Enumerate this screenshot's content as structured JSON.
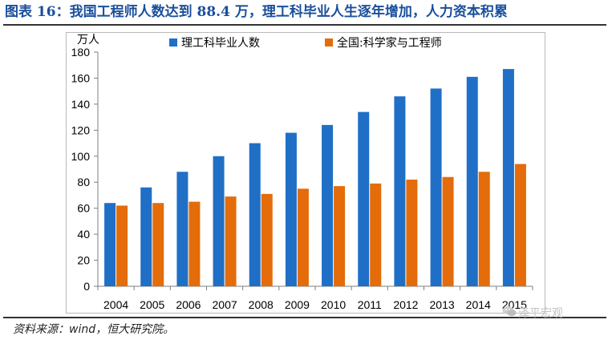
{
  "header": {
    "title": "图表 16：我国工程师人数达到 88.4 万，理工科毕业人生逐年增加，人力资本积累"
  },
  "footer": {
    "source": "资料来源：wind，恒大研究院。",
    "watermark": "泽平宏观"
  },
  "colors": {
    "series1": "#1f6fc6",
    "series2": "#e46c0a"
  },
  "icons": [
    "wechat-icon"
  ],
  "chart_data": {
    "type": "bar",
    "title": "",
    "ylabel": "万人",
    "xlabel": "",
    "ylim": [
      0,
      180
    ],
    "yticks": [
      0,
      20,
      40,
      60,
      80,
      100,
      120,
      140,
      160,
      180
    ],
    "legend_position": "top",
    "grid": false,
    "categories": [
      "2004",
      "2005",
      "2006",
      "2007",
      "2008",
      "2009",
      "2010",
      "2011",
      "2012",
      "2013",
      "2014",
      "2015"
    ],
    "series": [
      {
        "name": "理工科毕业人数",
        "values": [
          64,
          76,
          88,
          100,
          110,
          118,
          124,
          134,
          146,
          152,
          161,
          167
        ]
      },
      {
        "name": "全国:科学家与工程师",
        "values": [
          62,
          64,
          65,
          69,
          71,
          75,
          77,
          79,
          82,
          84,
          88,
          94
        ]
      }
    ]
  }
}
